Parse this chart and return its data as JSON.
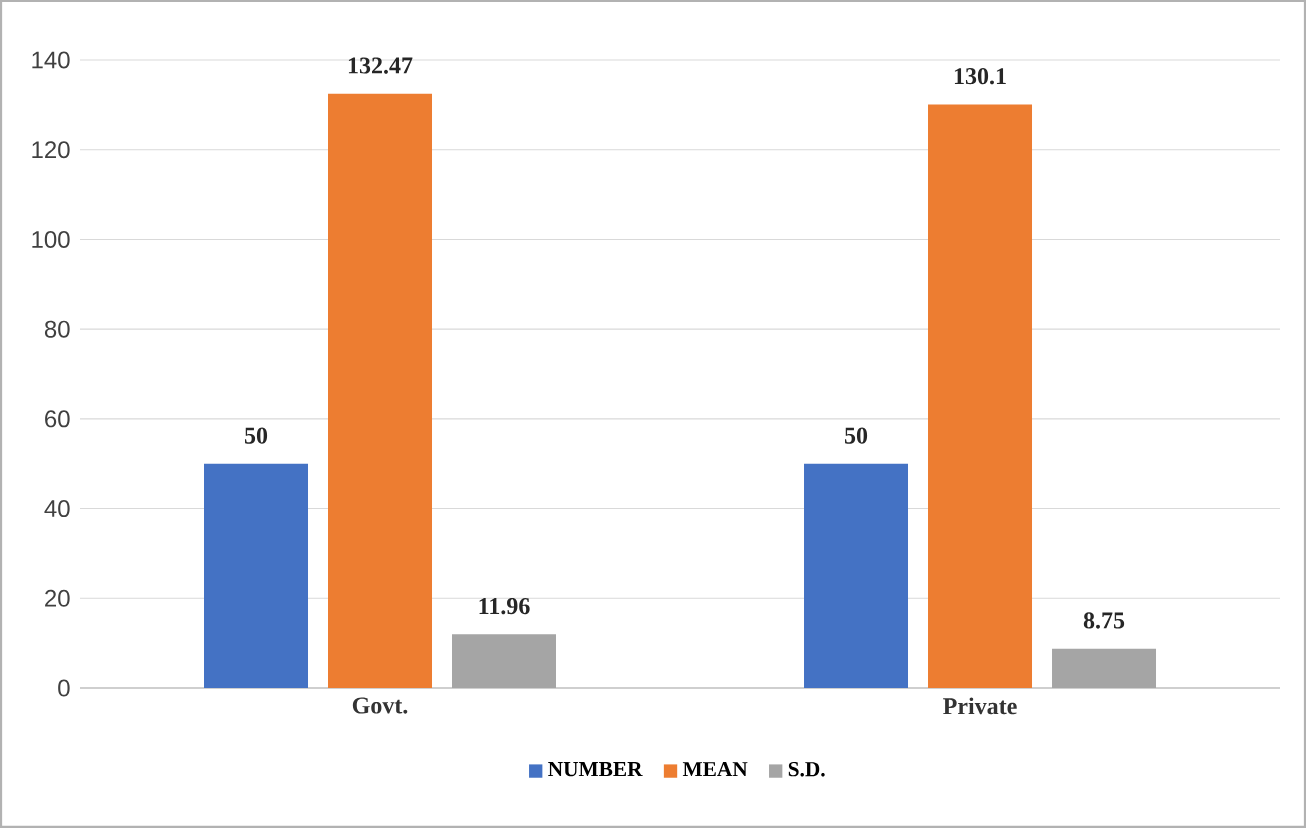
{
  "chart_data": {
    "type": "bar",
    "categories": [
      "Govt.",
      "Private"
    ],
    "series": [
      {
        "name": "NUMBER",
        "color": "#4472c4",
        "values": [
          50,
          50
        ]
      },
      {
        "name": "MEAN",
        "color": "#ed7d31",
        "values": [
          132.47,
          130.1
        ]
      },
      {
        "name": "S.D.",
        "color": "#a5a5a5",
        "values": [
          11.96,
          8.75
        ]
      }
    ],
    "ylim": [
      0,
      140
    ],
    "yticks": [
      0,
      20,
      40,
      60,
      80,
      100,
      120,
      140
    ],
    "grid": "y",
    "legend": "bottom",
    "data_labels": true
  }
}
